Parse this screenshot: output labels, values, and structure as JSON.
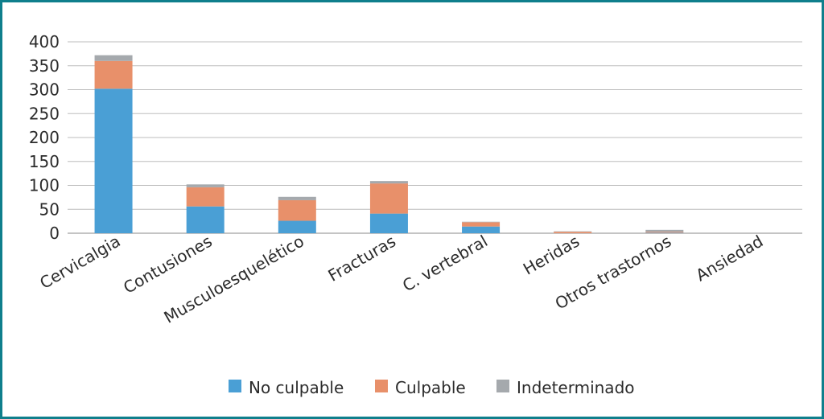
{
  "chart_data": {
    "type": "bar",
    "stacked": true,
    "categories": [
      "Cervicalgia",
      "Contusiones",
      "Musculoesquelético",
      "Fracturas",
      "C. vertebral",
      "Heridas",
      "Otros trastornos",
      "Ansiedad"
    ],
    "series": [
      {
        "name": "No culpable",
        "color": "#4a9fd5",
        "values": [
          302,
          56,
          26,
          41,
          14,
          0,
          1,
          0
        ]
      },
      {
        "name": "Culpable",
        "color": "#e8906a",
        "values": [
          58,
          40,
          43,
          63,
          9,
          3,
          2,
          0
        ]
      },
      {
        "name": "Indeterminado",
        "color": "#a5a9ad",
        "values": [
          12,
          6,
          7,
          5,
          1,
          1,
          4,
          0
        ]
      }
    ],
    "yticks": [
      0,
      50,
      100,
      150,
      200,
      250,
      300,
      350,
      400
    ],
    "ylim": [
      0,
      400
    ],
    "grid": true,
    "legend_position": "bottom",
    "title": "",
    "xlabel": "",
    "ylabel": ""
  }
}
